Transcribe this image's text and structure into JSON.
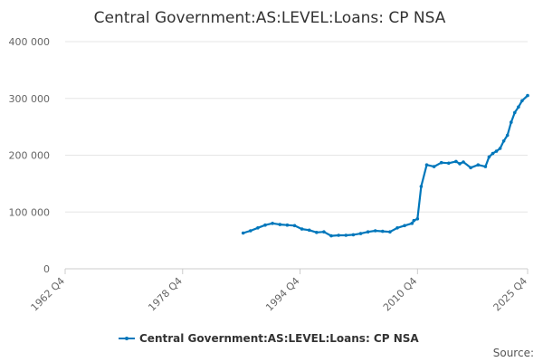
{
  "chart_data": {
    "type": "line",
    "title": "Central Government:AS:LEVEL:Loans: CP NSA",
    "xlabel": "",
    "ylabel": "",
    "x_tick_labels": [
      "1962 Q4",
      "1978 Q4",
      "1994 Q4",
      "2010 Q4",
      "2025 Q4"
    ],
    "y_ticks": [
      0,
      100000,
      200000,
      300000,
      400000
    ],
    "y_tick_labels": [
      "0",
      "100 000",
      "200 000",
      "300 000",
      "400 000"
    ],
    "ylim": [
      0,
      400000
    ],
    "xlim": [
      "1962 Q4",
      "2025 Q4"
    ],
    "grid": "horizontal",
    "legend_position": "bottom",
    "source_label": "Source:",
    "series": [
      {
        "name": "Central Government:AS:LEVEL:Loans: CP NSA",
        "color": "#0077bb",
        "x": [
          "1987 Q1",
          "1988 Q1",
          "1989 Q1",
          "1990 Q1",
          "1991 Q1",
          "1992 Q1",
          "1993 Q1",
          "1994 Q1",
          "1995 Q1",
          "1996 Q1",
          "1997 Q1",
          "1998 Q1",
          "1999 Q1",
          "2000 Q1",
          "2001 Q1",
          "2002 Q1",
          "2003 Q1",
          "2004 Q1",
          "2005 Q1",
          "2006 Q1",
          "2007 Q1",
          "2008 Q1",
          "2009 Q1",
          "2010 Q1",
          "2010 Q2",
          "2010 Q4",
          "2011 Q2",
          "2012 Q1",
          "2013 Q1",
          "2014 Q1",
          "2015 Q1",
          "2016 Q1",
          "2016 Q3",
          "2017 Q1",
          "2018 Q1",
          "2019 Q1",
          "2020 Q1",
          "2020 Q3",
          "2021 Q1",
          "2021 Q3",
          "2022 Q1",
          "2022 Q3",
          "2023 Q1",
          "2023 Q3",
          "2024 Q1",
          "2024 Q3",
          "2025 Q1",
          "2025 Q4"
        ],
        "values": [
          63000,
          67000,
          72000,
          77000,
          80000,
          78000,
          77000,
          76000,
          70000,
          68000,
          64000,
          65000,
          58000,
          59000,
          59000,
          60000,
          62000,
          65000,
          67000,
          66000,
          65000,
          72000,
          76000,
          80000,
          85000,
          88000,
          145000,
          183000,
          180000,
          187000,
          186000,
          189000,
          185000,
          188000,
          178000,
          183000,
          180000,
          197000,
          203000,
          207000,
          212000,
          225000,
          235000,
          258000,
          275000,
          285000,
          296000,
          305000
        ]
      }
    ]
  }
}
